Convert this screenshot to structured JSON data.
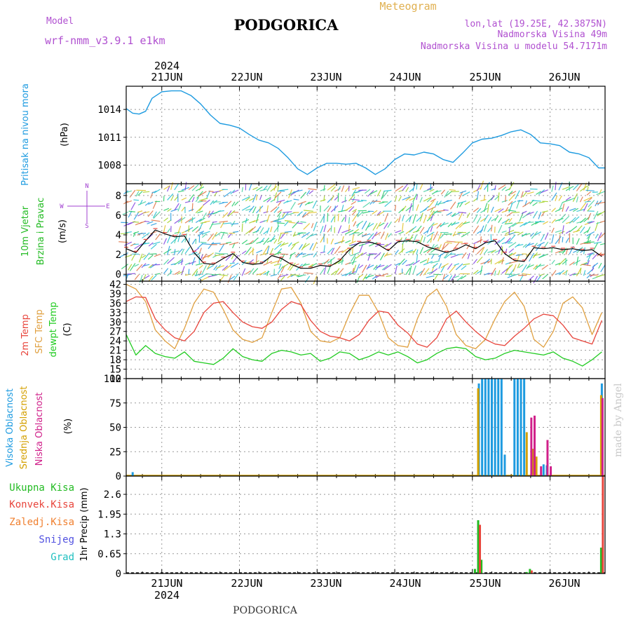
{
  "header": {
    "model_label": "Model",
    "model_name": "wrf-nmm_v3.9.1 e1km",
    "title": "PODGORICA",
    "subtitle": "Meteogram",
    "coords": "lon,lat (19.25E, 42.3875N)",
    "altitude": "Nadmorska Visina 49m",
    "model_altitude": "Nadmorska Visina u modelu 54.7171m",
    "year": "2024",
    "footer_station": "PODGORICA",
    "credit": "made by Angel"
  },
  "colors": {
    "pressure": "#1e9be0",
    "wind_speed_axis": "#22bb22",
    "temp2m": "#e8453c",
    "sfc": "#e0a040",
    "dewpt": "#22cc22",
    "high_cloud": "#1e9be0",
    "mid_cloud": "#d4a000",
    "low_cloud": "#d0208a",
    "precip_total": "#22bb22",
    "precip_conv": "#e8453c",
    "precip_frozen": "#f08030",
    "snow": "#5050e0",
    "hail": "#20c0c0",
    "compass": "#a040d0"
  },
  "chart_data": [
    {
      "id": "pressure",
      "type": "line",
      "ylabel_left": "Pritisak na nivou mora",
      "ylabel_unit": "(hPa)",
      "xticks": [
        "21JUN",
        "22JUN",
        "23JUN",
        "24JUN",
        "25JUN",
        "26JUN"
      ],
      "yticks": [
        1008,
        1011,
        1014
      ],
      "ylim": [
        1006,
        1016.5
      ],
      "grid": true,
      "x_hours_start": -11,
      "x_hours_end": 137,
      "series": [
        {
          "x": [
            -11,
            -9,
            -7,
            -5,
            -3,
            0,
            3,
            6,
            9,
            12,
            15,
            18,
            21,
            24,
            27,
            30,
            33,
            36,
            39,
            42,
            45,
            48,
            51,
            54,
            57,
            60,
            63,
            66,
            69,
            72,
            75,
            78,
            81,
            84,
            87,
            90,
            93,
            96,
            99,
            102,
            105,
            108,
            111,
            114,
            117,
            120,
            123,
            126,
            129,
            132,
            135,
            137
          ],
          "y": [
            1014.1,
            1013.6,
            1013.5,
            1013.8,
            1015.2,
            1015.9,
            1016.0,
            1016.0,
            1015.5,
            1014.6,
            1013.4,
            1012.5,
            1012.3,
            1012.0,
            1011.3,
            1010.7,
            1010.4,
            1009.8,
            1008.8,
            1007.6,
            1007.0,
            1007.7,
            1008.2,
            1008.2,
            1008.1,
            1008.2,
            1007.7,
            1007.0,
            1007.6,
            1008.6,
            1009.2,
            1009.1,
            1009.4,
            1009.2,
            1008.6,
            1008.3,
            1009.3,
            1010.4,
            1010.8,
            1010.9,
            1011.2,
            1011.6,
            1011.8,
            1011.3,
            1010.4,
            1010.3,
            1010.1,
            1009.4,
            1009.2,
            1008.8,
            1007.7,
            1007.7
          ]
        }
      ]
    },
    {
      "id": "wind",
      "type": "line",
      "ylabel_left": "10m Vjetar Brzina i Pravac",
      "ylabel_unit": "(m/s)",
      "compass_labels": [
        "N",
        "W",
        "E",
        "S"
      ],
      "yticks": [
        0,
        2,
        4,
        6,
        8
      ],
      "ylim": [
        -0.7,
        9.2
      ],
      "grid": true,
      "x_hours_start": -11,
      "x_hours_end": 137,
      "series": [
        {
          "x": [
            -11,
            -8,
            -5,
            -2,
            1,
            4,
            7,
            10,
            13,
            16,
            19,
            22,
            25,
            28,
            31,
            34,
            37,
            40,
            43,
            46,
            49,
            52,
            55,
            58,
            61,
            64,
            67,
            70,
            73,
            76,
            79,
            82,
            85,
            88,
            91,
            94,
            97,
            100,
            103,
            106,
            109,
            112,
            115,
            118,
            121,
            124,
            127,
            130,
            133,
            136
          ],
          "y": [
            2.6,
            2.2,
            3.4,
            4.5,
            4.1,
            3.8,
            3.9,
            2.2,
            1.1,
            1.0,
            1.6,
            2.1,
            1.2,
            1.0,
            1.1,
            1.9,
            1.6,
            1.0,
            0.6,
            0.6,
            0.9,
            0.8,
            1.4,
            2.5,
            3.2,
            3.3,
            3.0,
            2.4,
            3.3,
            3.4,
            3.3,
            2.8,
            2.5,
            2.2,
            2.5,
            3.0,
            2.6,
            3.2,
            3.4,
            2.1,
            1.4,
            1.3,
            2.7,
            2.6,
            2.7,
            2.5,
            2.6,
            2.4,
            2.5,
            1.8
          ]
        }
      ]
    },
    {
      "id": "temperature",
      "type": "line",
      "ylabel_left": [
        "2m Temp",
        "SFC Temp",
        "dewpt Temp"
      ],
      "ylabel_unit": "(C)",
      "yticks": [
        12,
        15,
        18,
        21,
        24,
        27,
        30,
        33,
        36,
        39,
        42
      ],
      "ylim": [
        12,
        43
      ],
      "grid": true,
      "x_hours_start": -11,
      "x_hours_end": 137,
      "series": [
        {
          "name": "2m Temp",
          "x": [
            -11,
            -8,
            -5,
            -2,
            1,
            4,
            7,
            10,
            13,
            16,
            19,
            22,
            25,
            28,
            31,
            34,
            37,
            40,
            43,
            46,
            49,
            52,
            55,
            58,
            61,
            64,
            67,
            70,
            73,
            76,
            79,
            82,
            85,
            88,
            91,
            94,
            97,
            100,
            103,
            106,
            109,
            112,
            115,
            118,
            121,
            124,
            127,
            130,
            133,
            136
          ],
          "y": [
            36.5,
            38.0,
            37.8,
            31.0,
            27.5,
            25.0,
            24.0,
            27.0,
            33.0,
            36.0,
            36.5,
            33.0,
            30.0,
            28.5,
            28.0,
            30.0,
            34.0,
            36.5,
            35.5,
            30.5,
            27.0,
            25.5,
            25.0,
            24.0,
            26.0,
            30.5,
            33.5,
            33.0,
            29.0,
            26.5,
            23.0,
            22.0,
            25.0,
            31.0,
            33.5,
            30.0,
            27.0,
            24.5,
            23.0,
            22.5,
            25.5,
            28.0,
            31.0,
            32.5,
            32.0,
            29.0,
            25.0,
            24.0,
            23.0,
            30.5
          ]
        },
        {
          "name": "SFC Temp",
          "x": [
            -11,
            -8,
            -5,
            -2,
            1,
            4,
            7,
            10,
            13,
            16,
            19,
            22,
            25,
            28,
            31,
            34,
            37,
            40,
            43,
            46,
            49,
            52,
            55,
            58,
            61,
            64,
            67,
            70,
            73,
            76,
            79,
            82,
            85,
            88,
            91,
            94,
            97,
            100,
            103,
            106,
            109,
            112,
            115,
            118,
            121,
            124,
            127,
            130,
            133,
            136
          ],
          "y": [
            42.0,
            40.5,
            36.5,
            27.5,
            24.0,
            21.5,
            28.0,
            36.0,
            40.5,
            39.5,
            34.0,
            27.5,
            24.5,
            23.5,
            25.0,
            33.0,
            40.5,
            41.0,
            36.0,
            27.0,
            24.0,
            23.5,
            25.0,
            32.5,
            38.5,
            38.5,
            33.0,
            25.0,
            22.5,
            22.0,
            31.0,
            38.0,
            40.5,
            35.0,
            26.0,
            22.5,
            21.5,
            24.5,
            31.0,
            36.5,
            39.5,
            35.0,
            24.5,
            22.0,
            27.0,
            36.0,
            38.0,
            34.5,
            26.0,
            33.0
          ]
        },
        {
          "name": "dewpt Temp",
          "x": [
            -11,
            -8,
            -5,
            -2,
            1,
            4,
            7,
            10,
            13,
            16,
            19,
            22,
            25,
            28,
            31,
            34,
            37,
            40,
            43,
            46,
            49,
            52,
            55,
            58,
            61,
            64,
            67,
            70,
            73,
            76,
            79,
            82,
            85,
            88,
            91,
            94,
            97,
            100,
            103,
            106,
            109,
            112,
            115,
            118,
            121,
            124,
            127,
            130,
            133,
            136
          ],
          "y": [
            26.0,
            19.5,
            22.5,
            20.0,
            19.0,
            18.5,
            20.5,
            17.5,
            17.0,
            16.5,
            18.5,
            21.5,
            19.0,
            18.0,
            17.5,
            20.0,
            21.0,
            20.5,
            19.5,
            20.0,
            17.5,
            18.5,
            20.5,
            20.0,
            18.0,
            19.0,
            20.5,
            19.5,
            20.5,
            19.0,
            17.0,
            18.0,
            20.0,
            21.5,
            22.0,
            21.5,
            19.0,
            18.0,
            18.5,
            20.0,
            21.0,
            20.5,
            20.0,
            19.5,
            20.5,
            18.5,
            17.5,
            16.0,
            18.0,
            20.5
          ]
        }
      ]
    },
    {
      "id": "cloud",
      "type": "bar",
      "ylabel_left": [
        "Visoka Oblacnost",
        "Srednja Oblacnost",
        "Niska Oblacnost"
      ],
      "ylabel_unit": "(%)",
      "yticks": [
        0,
        25,
        50,
        75,
        100
      ],
      "ylim": [
        0,
        100
      ],
      "grid": true,
      "x_hours_start": -11,
      "x_hours_end": 137,
      "series": [
        {
          "name": "Visoka Oblacnost",
          "x": [
            -9,
            98,
            99,
            100,
            101,
            102,
            103,
            104,
            105,
            106,
            109,
            110,
            111,
            112,
            118,
            119,
            136
          ],
          "y": [
            4,
            95,
            100,
            100,
            100,
            100,
            100,
            100,
            100,
            22,
            100,
            100,
            100,
            100,
            12,
            11,
            95
          ]
        },
        {
          "name": "Srednja Oblacnost",
          "x": [
            98,
            113,
            115,
            116,
            136
          ],
          "y": [
            90,
            45,
            28,
            20,
            83
          ]
        },
        {
          "name": "Niska Oblacnost",
          "x": [
            114,
            115,
            117,
            119,
            120,
            136
          ],
          "y": [
            60,
            62,
            10,
            37,
            10,
            80
          ]
        }
      ]
    },
    {
      "id": "precip",
      "type": "bar",
      "ylabel_left": [
        "Ukupna Kisa",
        "Konvek.Kisa",
        "Zaledj.Kisa",
        "Snijeg",
        "Grad"
      ],
      "ylabel_unit": "1hr Precip (mm)",
      "xticks": [
        "21JUN",
        "22JUN",
        "23JUN",
        "24JUN",
        "25JUN",
        "26JUN"
      ],
      "yticks": [
        0,
        0.65,
        1.3,
        1.95,
        2.6
      ],
      "ylim": [
        0,
        3.2
      ],
      "grid": true,
      "x_hours_start": -11,
      "x_hours_end": 137,
      "series": [
        {
          "name": "Ukupna Kisa",
          "x": [
            97,
            98,
            99,
            113,
            114,
            136
          ],
          "y": [
            0.15,
            1.75,
            0.45,
            0.05,
            0.15,
            0.85
          ]
        },
        {
          "name": "Konvek.Kisa",
          "x": [
            98,
            114,
            136
          ],
          "y": [
            1.6,
            0.1,
            3.2
          ]
        }
      ]
    }
  ]
}
